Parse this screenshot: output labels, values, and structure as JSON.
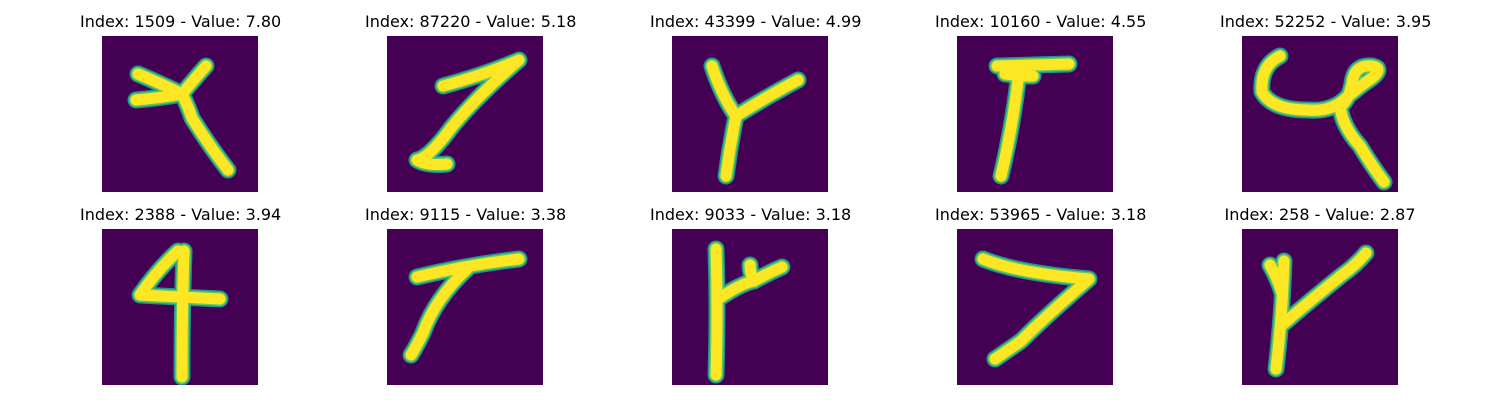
{
  "colors": {
    "background": "#440154",
    "stroke_core": "#fde725",
    "stroke_edge": "#5ec962",
    "stroke_halo": "#21918c"
  },
  "panels": [
    {
      "title": "Index: 1509 - Value: 7.80",
      "index": 1509,
      "value": 7.8
    },
    {
      "title": "Index: 87220 - Value: 5.18",
      "index": 87220,
      "value": 5.18
    },
    {
      "title": "Index: 43399 - Value: 4.99",
      "index": 43399,
      "value": 4.99
    },
    {
      "title": "Index: 10160 - Value: 4.55",
      "index": 10160,
      "value": 4.55
    },
    {
      "title": "Index: 52252 - Value: 3.95",
      "index": 52252,
      "value": 3.95
    },
    {
      "title": "Index: 2388 - Value: 3.94",
      "index": 2388,
      "value": 3.94
    },
    {
      "title": "Index: 9115 - Value: 3.38",
      "index": 9115,
      "value": 3.38
    },
    {
      "title": "Index: 9033 - Value: 3.18",
      "index": 9033,
      "value": 3.18
    },
    {
      "title": "Index: 53965 - Value: 3.18",
      "index": 53965,
      "value": 3.18
    },
    {
      "title": "Index: 258 - Value: 2.87",
      "index": 258,
      "value": 2.87
    }
  ]
}
